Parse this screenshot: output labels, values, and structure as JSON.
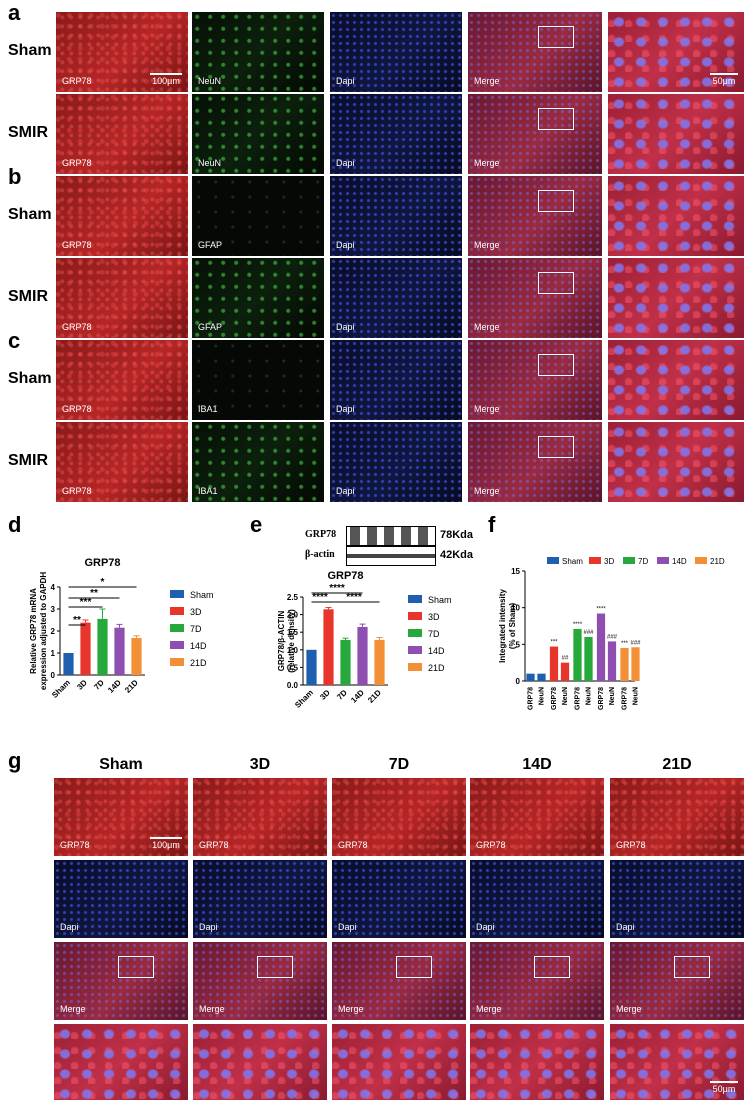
{
  "panel_labels": {
    "a": "a",
    "b": "b",
    "c": "c",
    "d": "d",
    "e": "e",
    "f": "f",
    "g": "g"
  },
  "rows": {
    "sham": "Sham",
    "smir": "SMIR"
  },
  "channels": {
    "grp78": "GRP78",
    "neun": "NeuN",
    "gfap": "GFAP",
    "iba1": "IBA1",
    "dapi": "Dapi",
    "merge": "Merge"
  },
  "scale_bars": {
    "large": "100μm",
    "small": "50μm"
  },
  "western": {
    "band1": "GRP78",
    "band2": "β-actin",
    "size1": "78Kda",
    "size2": "42Kda"
  },
  "g_columns": [
    "Sham",
    "3D",
    "7D",
    "14D",
    "21D"
  ],
  "colors": {
    "sham": "#1f5fb0",
    "3d": "#e8352c",
    "7d": "#27a83a",
    "14d": "#8e4fb0",
    "21d": "#f39035"
  },
  "chart_data": [
    {
      "panel": "d",
      "type": "bar",
      "title": "GRP78",
      "ylabel": "Relative GRP78 mRNA expression adjusted to GAPDH",
      "categories": [
        "Sham",
        "3D",
        "7D",
        "14D",
        "21D"
      ],
      "values": [
        1.0,
        2.38,
        2.55,
        2.15,
        1.68
      ],
      "errors": [
        0,
        0.12,
        0.45,
        0.15,
        0.1
      ],
      "ylim": [
        0,
        4
      ],
      "yticks": [
        "0",
        "1",
        "2",
        "3",
        "4"
      ],
      "significance": [
        "**",
        "***",
        "**",
        "*"
      ],
      "legend": [
        "Sham",
        "3D",
        "7D",
        "14D",
        "21D"
      ]
    },
    {
      "panel": "e",
      "type": "bar",
      "title": "GRP78",
      "ylabel": "GRP78/β-ACTIN (relative density)",
      "categories": [
        "Sham",
        "3D",
        "7D",
        "14D",
        "21D"
      ],
      "values": [
        1.0,
        2.15,
        1.28,
        1.65,
        1.28
      ],
      "errors": [
        0,
        0.05,
        0.05,
        0.08,
        0.07
      ],
      "ylim": [
        0,
        2.5
      ],
      "yticks": [
        "0.0",
        "0.5",
        "1.0",
        "1.5",
        "2.0",
        "2.5"
      ],
      "significance": [
        "****",
        "****",
        "****"
      ],
      "legend": [
        "Sham",
        "3D",
        "7D",
        "14D",
        "21D"
      ]
    },
    {
      "panel": "f",
      "type": "bar",
      "ylabel": "Integrated intensity (% of Sham)",
      "categories": [
        "GRP78",
        "NeuN",
        "GRP78",
        "NeuN",
        "GRP78",
        "NeuN",
        "GRP78",
        "NeuN",
        "GRP78",
        "NeuN"
      ],
      "groups": [
        "Sham",
        "3D",
        "7D",
        "14D",
        "21D"
      ],
      "values": [
        1.0,
        1.0,
        4.7,
        2.5,
        7.1,
        6.0,
        9.2,
        5.4,
        4.5,
        4.6
      ],
      "ylim": [
        0,
        15
      ],
      "yticks": [
        "0",
        "5",
        "10",
        "15"
      ],
      "annotations": [
        "",
        "",
        "***",
        "##",
        "****",
        "###",
        "****",
        "###",
        "***",
        "###"
      ],
      "legend": [
        "Sham",
        "3D",
        "7D",
        "14D",
        "21D"
      ]
    }
  ]
}
